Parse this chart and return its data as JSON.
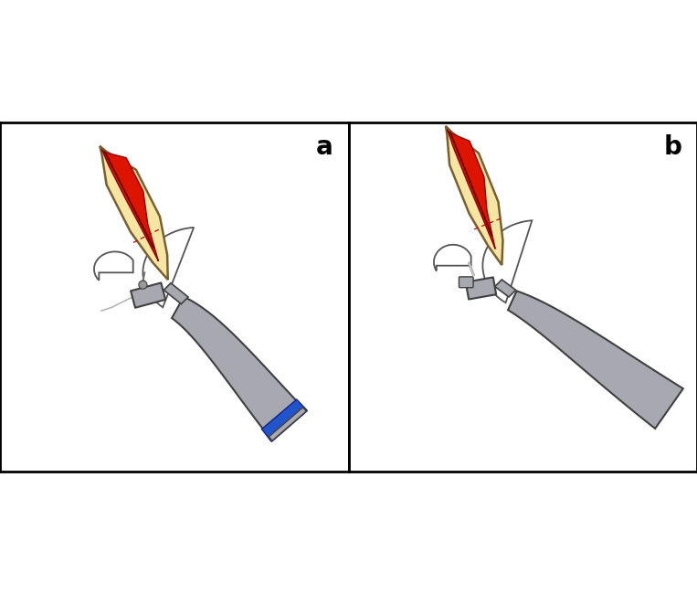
{
  "background_color": "#ffffff",
  "border_color": "#000000",
  "tooth_fill": "#f5e6a3",
  "tooth_outline": "#7a6030",
  "pulp_fill": "#dd1500",
  "pulp_outline": "#990000",
  "gum_fill": "#ffffff",
  "gum_outline": "#555555",
  "handle_fill": "#a8a8b0",
  "handle_outline": "#404040",
  "handle_fill_dark": "#888898",
  "blue_ring": "#2255cc",
  "blue_ring_dark": "#112288",
  "dashed_line_color": "#cc0000",
  "label_a": "a",
  "label_b": "b",
  "label_fontsize": 20,
  "label_fontweight": "bold"
}
